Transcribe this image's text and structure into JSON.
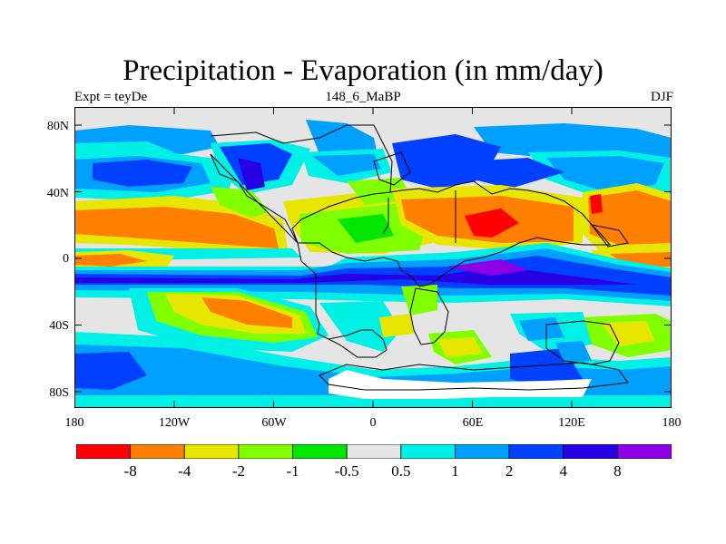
{
  "title": "Precipitation - Evaporation (in mm/day)",
  "subtitle_left": "Expt = teyDe",
  "subtitle_center": "148_6_MaBP",
  "subtitle_right": "DJF",
  "lat_labels": [
    "80N",
    "40N",
    "0",
    "40S",
    "80S"
  ],
  "lon_labels": [
    "180",
    "120W",
    "60W",
    "0",
    "60E",
    "120E",
    "180"
  ],
  "colorbar": {
    "colors": [
      "#ff0000",
      "#ff7f00",
      "#e6e600",
      "#80ff00",
      "#00e600",
      "#e5e5e5",
      "#00f0e6",
      "#00a0ff",
      "#0040ff",
      "#2800e6",
      "#8c00e6"
    ],
    "labels": [
      "-8",
      "-4",
      "-2",
      "-1",
      "-0.5",
      "0.5",
      "1",
      "2",
      "4",
      "8"
    ]
  },
  "map": {
    "background": "#e5e5e5",
    "palette": {
      "dred": "#ff0000",
      "org": "#ff7f00",
      "yel": "#e6e600",
      "lgr": "#80ff00",
      "grn": "#00e600",
      "gry": "#e5e5e5",
      "cyn": "#00f0e6",
      "lbl": "#00a0ff",
      "blu": "#0040ff",
      "dbl": "#2800e6",
      "pur": "#8c00e6",
      "wht": "#ffffff"
    }
  }
}
